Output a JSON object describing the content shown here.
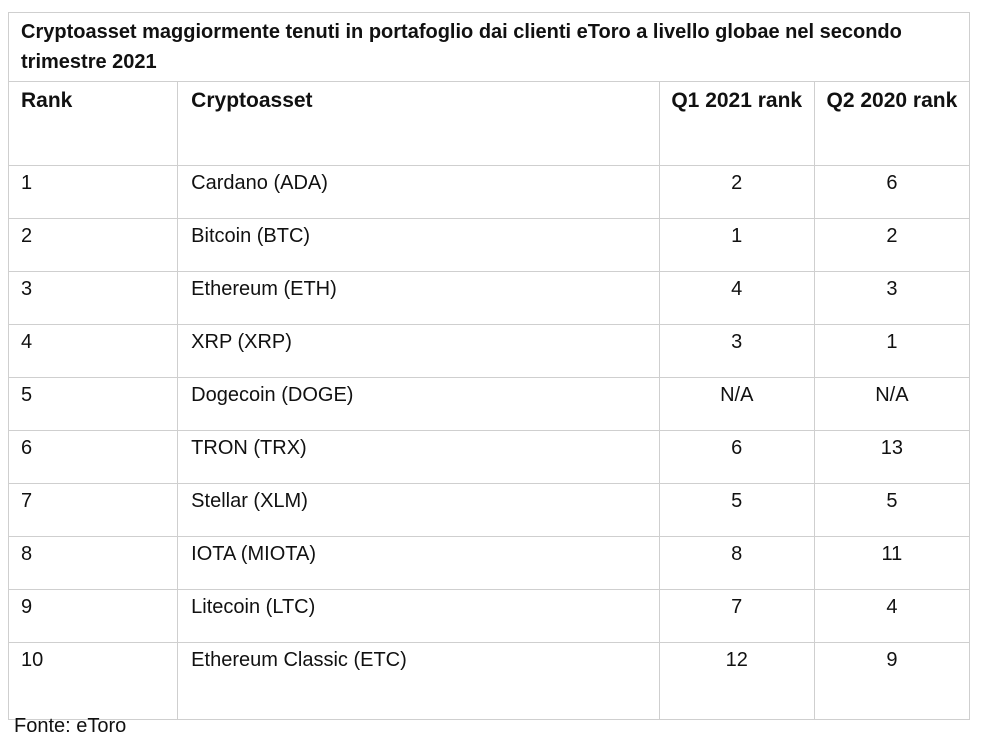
{
  "title": "Cryptoasset maggiormente tenuti in portafoglio dai clienti eToro a livello globae nel secondo trimestre 2021",
  "headers": {
    "rank": "Rank",
    "asset": "Cryptoasset",
    "q1_2021": "Q1 2021 rank",
    "q2_2020": "Q2 2020 rank"
  },
  "rows": [
    {
      "rank": "1",
      "asset": "Cardano (ADA)",
      "q1_2021": "2",
      "q2_2020": "6"
    },
    {
      "rank": "2",
      "asset": "Bitcoin (BTC)",
      "q1_2021": "1",
      "q2_2020": "2"
    },
    {
      "rank": "3",
      "asset": "Ethereum (ETH)",
      "q1_2021": "4",
      "q2_2020": "3"
    },
    {
      "rank": "4",
      "asset": "XRP (XRP)",
      "q1_2021": "3",
      "q2_2020": "1"
    },
    {
      "rank": "5",
      "asset": "Dogecoin (DOGE)",
      "q1_2021": "N/A",
      "q2_2020": "N/A"
    },
    {
      "rank": "6",
      "asset": "TRON (TRX)",
      "q1_2021": "6",
      "q2_2020": "13"
    },
    {
      "rank": "7",
      "asset": "Stellar (XLM)",
      "q1_2021": "5",
      "q2_2020": "5"
    },
    {
      "rank": "8",
      "asset": "IOTA (MIOTA)",
      "q1_2021": "8",
      "q2_2020": "11"
    },
    {
      "rank": "9",
      "asset": "Litecoin (LTC)",
      "q1_2021": "7",
      "q2_2020": "4"
    },
    {
      "rank": "10",
      "asset": "Ethereum Classic (ETC)",
      "q1_2021": "12",
      "q2_2020": "9"
    }
  ],
  "source": "Fonte: eToro"
}
